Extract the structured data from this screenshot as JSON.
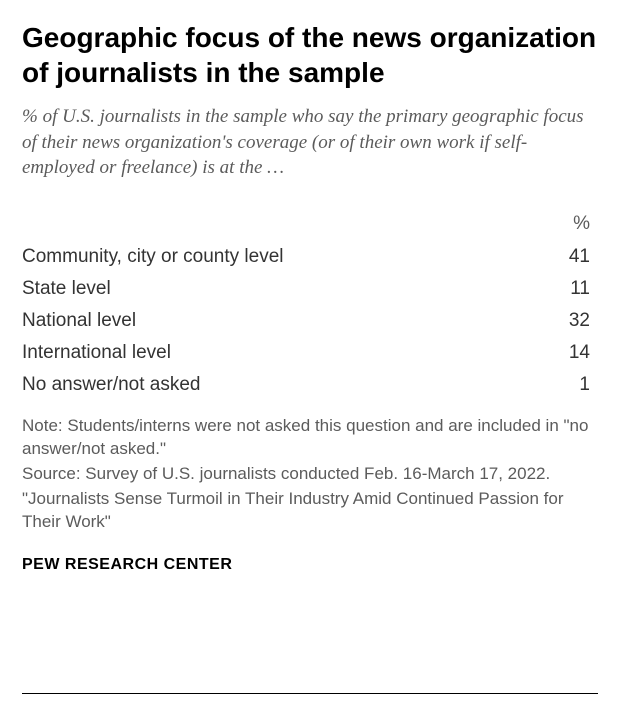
{
  "title": "Geographic focus of the news organization of journalists in the sample",
  "subtitle": "% of U.S. journalists in the sample who say the primary geographic focus of their news organization's coverage (or of their own work if self-employed or freelance) is at the …",
  "table": {
    "type": "table",
    "header_label": "%",
    "columns": [
      "label",
      "value"
    ],
    "rows": [
      {
        "label": "Community, city or county level",
        "value": "41"
      },
      {
        "label": "State level",
        "value": "11"
      },
      {
        "label": "National level",
        "value": "32"
      },
      {
        "label": "International level",
        "value": "14"
      },
      {
        "label": "No answer/not asked",
        "value": "1"
      }
    ],
    "label_fontsize": 19,
    "value_fontsize": 19,
    "header_fontsize": 19,
    "text_color": "#333333",
    "header_color": "#5b5b5b"
  },
  "notes": {
    "note": "Note: Students/interns were not asked this question and are included in \"no answer/not asked.\"",
    "source": "Source: Survey of U.S. journalists conducted Feb. 16-March 17, 2022.",
    "report": "\"Journalists Sense Turmoil in Their Industry Amid Continued Passion for Their Work\""
  },
  "attribution": "PEW RESEARCH CENTER",
  "style": {
    "title_fontsize": 28,
    "title_color": "#000000",
    "subtitle_fontsize": 19,
    "subtitle_color": "#5b5b5b",
    "notes_fontsize": 17,
    "notes_color": "#5b5b5b",
    "attribution_fontsize": 16,
    "attribution_color": "#000000",
    "background_color": "#ffffff",
    "rule_color": "#000000"
  }
}
